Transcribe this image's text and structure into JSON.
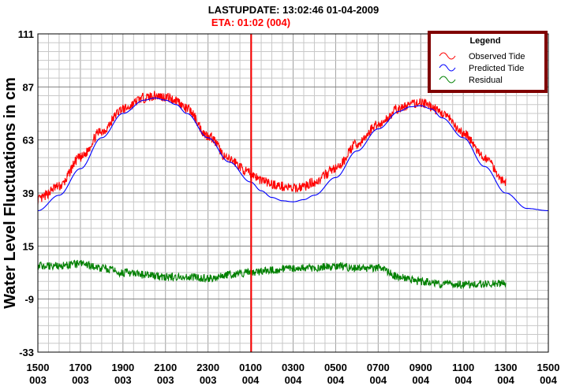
{
  "chart_data": {
    "type": "line",
    "title": "LASTUPDATE: 13:02:46  01-04-2009",
    "subtitle": "ETA: 01:02 (004)",
    "ylabel": "Water Level Fluctuations in cm",
    "xlabel": "",
    "ylim": [
      -33,
      111
    ],
    "xlim": [
      0,
      24
    ],
    "yticks": [
      111,
      87,
      63,
      39,
      15,
      -9,
      -33
    ],
    "xticks": [
      {
        "x": 0,
        "time": "1500",
        "day": "003"
      },
      {
        "x": 2,
        "time": "1700",
        "day": "003"
      },
      {
        "x": 4,
        "time": "1900",
        "day": "003"
      },
      {
        "x": 6,
        "time": "2100",
        "day": "003"
      },
      {
        "x": 8,
        "time": "2300",
        "day": "003"
      },
      {
        "x": 10,
        "time": "0100",
        "day": "004"
      },
      {
        "x": 12,
        "time": "0300",
        "day": "004"
      },
      {
        "x": 14,
        "time": "0500",
        "day": "004"
      },
      {
        "x": 16,
        "time": "0700",
        "day": "004"
      },
      {
        "x": 18,
        "time": "0900",
        "day": "004"
      },
      {
        "x": 20,
        "time": "1100",
        "day": "004"
      },
      {
        "x": 22,
        "time": "1300",
        "day": "004"
      },
      {
        "x": 24,
        "time": "1500",
        "day": "004"
      }
    ],
    "eta_marker_x": 10.03,
    "grid": true,
    "legend": {
      "title": "Legend",
      "position": "top-right"
    },
    "series": [
      {
        "name": "Observed Tide",
        "color": "#ff0000",
        "x": [
          0,
          1,
          2,
          3,
          4,
          5,
          5.5,
          6,
          6.5,
          7,
          8,
          9,
          10,
          10.5,
          11,
          11.5,
          12,
          12.5,
          13,
          14,
          15,
          16,
          17,
          17.5,
          18,
          18.5,
          19,
          20,
          21,
          22
        ],
        "y": [
          36,
          42,
          55,
          67,
          77,
          82,
          83,
          82.5,
          81,
          77,
          65,
          54,
          48,
          45,
          43,
          42,
          41,
          42,
          44,
          50,
          61,
          70,
          77,
          79,
          80,
          78,
          75,
          66,
          55,
          44
        ]
      },
      {
        "name": "Predicted Tide",
        "color": "#0000ff",
        "x": [
          0,
          1,
          2,
          3,
          4,
          5,
          5.5,
          6,
          6.5,
          7,
          8,
          9,
          10,
          10.5,
          11,
          11.5,
          12,
          12.5,
          13,
          14,
          15,
          16,
          17,
          17.5,
          18,
          18.5,
          19,
          20,
          21,
          22,
          23,
          24
        ],
        "y": [
          31,
          38,
          50,
          64,
          75,
          81,
          82,
          81,
          79,
          75,
          64,
          53,
          44,
          40,
          37,
          35.5,
          35,
          36,
          38,
          46,
          58,
          68,
          76,
          78,
          78.5,
          77,
          73,
          64,
          51,
          39,
          32,
          31
        ]
      },
      {
        "name": "Residual",
        "color": "#008000",
        "x": [
          0,
          1,
          2,
          3,
          4,
          5,
          6,
          7,
          8,
          9,
          10,
          11,
          12,
          13,
          14,
          15,
          16,
          17,
          18,
          19,
          20,
          21,
          22
        ],
        "y": [
          6,
          6,
          7,
          5,
          3,
          2,
          1,
          1,
          0.5,
          2,
          3,
          4,
          5,
          5,
          6,
          5,
          5,
          1,
          -1,
          -2,
          -2.5,
          -2,
          -2
        ]
      }
    ]
  }
}
